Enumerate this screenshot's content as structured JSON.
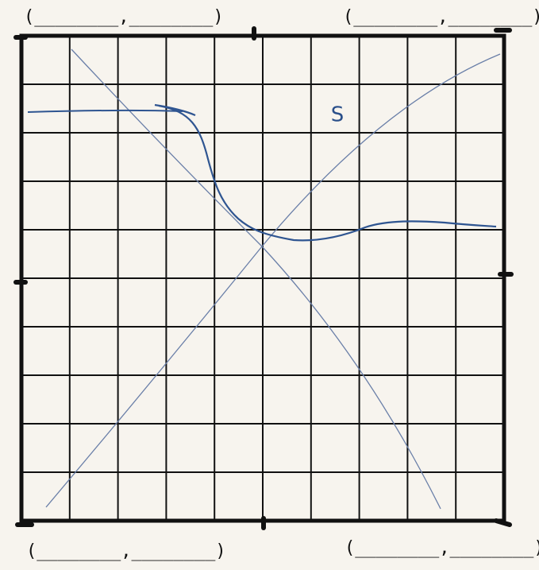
{
  "labels": {
    "curve": "S"
  },
  "corners": {
    "top_left": "(________,________)",
    "top_right": "(________,________)",
    "bottom_left": "(________,________)",
    "bottom_right": "(________,________)"
  }
}
